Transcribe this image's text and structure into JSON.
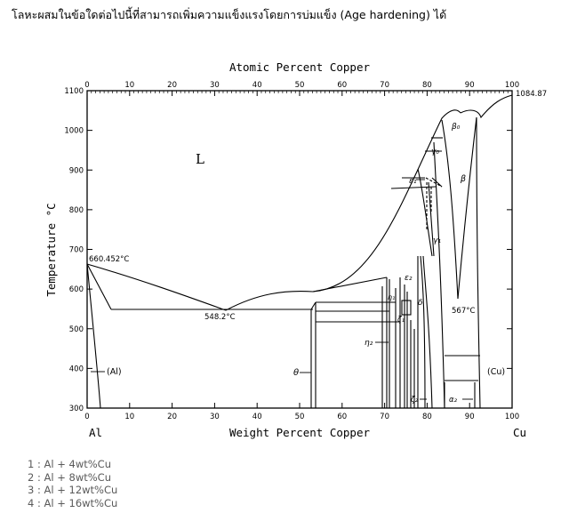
{
  "question": {
    "text": "โลหะผสมในข้อใดต่อไปนี้ที่สามารถเพิ่มความแข็งแรงโดยการบ่มแข็ง (Age hardening) ได้"
  },
  "figure": {
    "top_axis_title": "Atomic Percent Copper",
    "bottom_axis_title": "Weight Percent Copper",
    "left_axis_title": "Temperature °C",
    "left_element": "Al",
    "right_element": "Cu",
    "top_ticks": [
      "0",
      "10",
      "20",
      "30",
      "40",
      "50",
      "60",
      "70",
      "80",
      "90",
      "100"
    ],
    "bottom_ticks": [
      "0",
      "10",
      "20",
      "30",
      "40",
      "50",
      "60",
      "70",
      "80",
      "90",
      "100"
    ],
    "left_ticks": [
      "1100",
      "1000",
      "900",
      "800",
      "700",
      "600",
      "500",
      "400",
      "300"
    ],
    "annotations": {
      "cu_melting": "1084.87",
      "al_melting": "660.452°C",
      "eutectic": "548.2°C",
      "eutectoid": "567°C",
      "liquid": "L",
      "al_phase": "(Al)",
      "cu_phase": "(Cu)",
      "theta": "θ",
      "eta2": "η₂",
      "zeta1": "ζ₁",
      "zeta2": "ζ₂",
      "epsilon1": "ε₁",
      "epsilon2": "ε₂",
      "eta1": "η₁",
      "delta": "δ",
      "gamma0": "γ₀",
      "gamma1": "γ₁",
      "beta": "β",
      "beta0": "β₀",
      "alpha2": "α₂"
    }
  },
  "choices": [
    {
      "label": "1 : Al + 4wt%Cu"
    },
    {
      "label": "2 : Al + 8wt%Cu"
    },
    {
      "label": "3 : Al + 12wt%Cu"
    },
    {
      "label": "4 : Al + 16wt%Cu"
    }
  ]
}
